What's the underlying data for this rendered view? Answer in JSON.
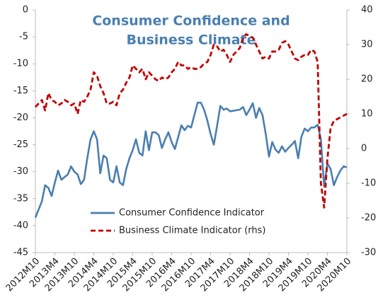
{
  "chart_data": {
    "type": "line",
    "title": [
      "Consumer Confidence and",
      "Business Climate"
    ],
    "categories": [
      "2012M10",
      null,
      null,
      null,
      null,
      null,
      "2013M4",
      null,
      null,
      null,
      null,
      null,
      "2013M10",
      null,
      null,
      null,
      null,
      null,
      "2014M4",
      null,
      null,
      null,
      null,
      null,
      "2014M10",
      null,
      null,
      null,
      null,
      null,
      "2015M4",
      null,
      null,
      null,
      null,
      null,
      "2015M10",
      null,
      null,
      null,
      null,
      null,
      "2016M4",
      null,
      null,
      null,
      null,
      null,
      "2016M10",
      null,
      null,
      null,
      null,
      null,
      "2017M4",
      null,
      null,
      null,
      null,
      null,
      "2017M10",
      null,
      null,
      null,
      null,
      null,
      "2018M4",
      null,
      null,
      null,
      null,
      null,
      "2018M10",
      null,
      null,
      null,
      null,
      null,
      "2019M4",
      null,
      null,
      null,
      null,
      null,
      "2019M10",
      null,
      null,
      null,
      null,
      null,
      "2020M4",
      null,
      null,
      null,
      null,
      null,
      "2020M10"
    ],
    "series": [
      {
        "name": "Consumer Confidence Indicator",
        "color": "#4a7fb0",
        "dash": false,
        "values": [
          -38.5,
          -37,
          -35.5,
          -32.5,
          -33,
          -34.5,
          -32,
          -29.8,
          -31.5,
          -31,
          -30.5,
          -29,
          -30,
          -30.5,
          -32.3,
          -31.5,
          -27.5,
          -24,
          -22.5,
          -24,
          -30.3,
          -27,
          -27.5,
          -31.5,
          -32,
          -29,
          -32,
          -32.5,
          -29.5,
          -27.5,
          -26,
          -24,
          -26.5,
          -27,
          -22.5,
          -26,
          -22.7,
          -22.7,
          -23.2,
          -25.6,
          -24,
          -22.7,
          -24.5,
          -25.8,
          -23.6,
          -21.4,
          -22.3,
          -21.5,
          -21.8,
          -19.5,
          -17.2,
          -17.2,
          -18.5,
          -20.5,
          -23,
          -25,
          -21.5,
          -17.8,
          -18.5,
          -18.3,
          -18.8,
          -18.7,
          -18.6,
          -18.5,
          -18,
          -19.5,
          -18.5,
          -17.3,
          -20,
          -18.2,
          -19.5,
          -23,
          -27.2,
          -24.5,
          -25.9,
          -26.5,
          -25.3,
          -26.3,
          -25.6,
          -25,
          -24.3,
          -27.5,
          -23.5,
          -22,
          -22.5,
          -21.8,
          -21.8,
          -21.3,
          -24,
          -32.8,
          -28.5,
          -29.5,
          -32.5,
          -31,
          -29.8,
          -29,
          -29.2
        ]
      },
      {
        "name": "Business Climate Indicator (rhs)",
        "color": "#c00000",
        "dash": true,
        "axis": "y2",
        "values": [
          12,
          13,
          14,
          11,
          16,
          14,
          13.5,
          12.5,
          13,
          14,
          13.5,
          12.5,
          13,
          10,
          14,
          13.5,
          15,
          17,
          22,
          21,
          18,
          16,
          13,
          13,
          13.5,
          12.5,
          16,
          17,
          19,
          20.5,
          24,
          23,
          22,
          23,
          20,
          22,
          21,
          20,
          19.5,
          20.5,
          20,
          20.5,
          22,
          23,
          25,
          24,
          24,
          23,
          23.5,
          23,
          23,
          23.5,
          24.5,
          25,
          27,
          30,
          29.5,
          28,
          28.5,
          27,
          25,
          27,
          28,
          29,
          32,
          33,
          32.5,
          32,
          30,
          28,
          26,
          26.5,
          26,
          28,
          28,
          28.5,
          30.5,
          31,
          30,
          28,
          26,
          25.5,
          26.5,
          27,
          27,
          28.5,
          28,
          25,
          -10,
          -17,
          -3,
          6,
          8,
          8.5,
          9,
          9.5,
          10
        ]
      }
    ],
    "ylim": [
      -45,
      0
    ],
    "yticks": [
      0,
      -5,
      -10,
      -15,
      -20,
      -25,
      -30,
      -35,
      -40,
      -45
    ],
    "y2lim": [
      -30,
      40
    ],
    "y2ticks": [
      40,
      30,
      20,
      10,
      0,
      -10,
      -20,
      -30
    ]
  }
}
